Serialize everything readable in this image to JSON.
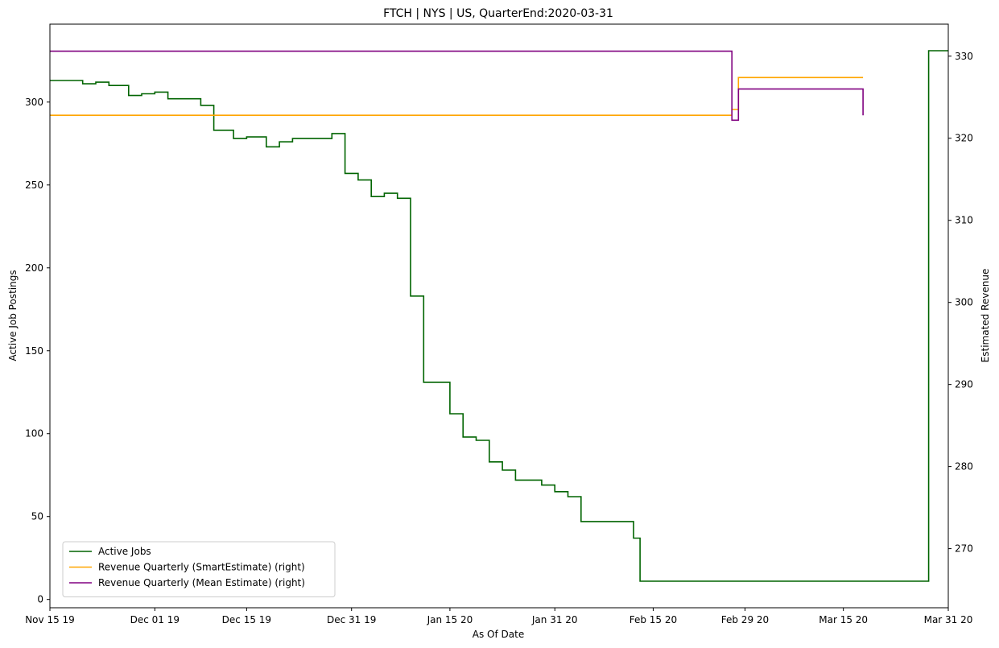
{
  "chart_data": {
    "type": "line",
    "title": "FTCH | NYS | US, QuarterEnd:2020-03-31",
    "xlabel": "As Of Date",
    "ylabel": "Active Job Postings",
    "y2label": "Estimated Revenue",
    "xlim": [
      "2019-11-15",
      "2020-03-31"
    ],
    "ylim": [
      -5,
      347
    ],
    "y2lim": [
      262.8,
      333.9
    ],
    "x_ticks": [
      {
        "date": "2019-11-15",
        "label": "Nov 15 19"
      },
      {
        "date": "2019-12-01",
        "label": "Dec 01 19"
      },
      {
        "date": "2019-12-15",
        "label": "Dec 15 19"
      },
      {
        "date": "2019-12-31",
        "label": "Dec 31 19"
      },
      {
        "date": "2020-01-15",
        "label": "Jan 15 20"
      },
      {
        "date": "2020-01-31",
        "label": "Jan 31 20"
      },
      {
        "date": "2020-02-15",
        "label": "Feb 15 20"
      },
      {
        "date": "2020-02-29",
        "label": "Feb 29 20"
      },
      {
        "date": "2020-03-15",
        "label": "Mar 15 20"
      },
      {
        "date": "2020-03-31",
        "label": "Mar 31 20"
      }
    ],
    "y_ticks": [
      0,
      50,
      100,
      150,
      200,
      250,
      300
    ],
    "y2_ticks": [
      270,
      280,
      290,
      300,
      310,
      320,
      330
    ],
    "grid": false,
    "legend_position": "lower-left",
    "series": [
      {
        "name": "Active Jobs",
        "axis": "left",
        "color": "#006400",
        "step": "post",
        "points": [
          [
            "2019-11-15",
            313
          ],
          [
            "2019-11-20",
            311
          ],
          [
            "2019-11-22",
            312
          ],
          [
            "2019-11-24",
            310
          ],
          [
            "2019-11-27",
            304
          ],
          [
            "2019-11-29",
            305
          ],
          [
            "2019-11-31",
            306
          ],
          [
            "2019-12-03",
            302
          ],
          [
            "2019-12-08",
            298
          ],
          [
            "2019-12-10",
            283
          ],
          [
            "2019-12-13",
            278
          ],
          [
            "2019-12-15",
            279
          ],
          [
            "2019-12-18",
            273
          ],
          [
            "2019-12-20",
            276
          ],
          [
            "2019-12-22",
            278
          ],
          [
            "2019-12-28",
            281
          ],
          [
            "2019-12-30",
            257
          ],
          [
            "2020-01-01",
            253
          ],
          [
            "2020-01-03",
            243
          ],
          [
            "2020-01-05",
            245
          ],
          [
            "2020-01-07",
            242
          ],
          [
            "2020-01-09",
            183
          ],
          [
            "2020-01-11",
            131
          ],
          [
            "2020-01-15",
            112
          ],
          [
            "2020-01-17",
            98
          ],
          [
            "2020-01-19",
            96
          ],
          [
            "2020-01-21",
            83
          ],
          [
            "2020-01-23",
            78
          ],
          [
            "2020-01-25",
            72
          ],
          [
            "2020-01-29",
            69
          ],
          [
            "2020-01-31",
            65
          ],
          [
            "2020-02-02",
            62
          ],
          [
            "2020-02-04",
            47
          ],
          [
            "2020-02-12",
            37
          ],
          [
            "2020-02-13",
            11
          ],
          [
            "2020-03-28",
            331
          ],
          [
            "2020-03-31",
            331
          ]
        ]
      },
      {
        "name": "Revenue Quarterly (SmartEstimate) (right)",
        "axis": "right",
        "color": "#FFA500",
        "step": "post",
        "points": [
          [
            "2019-11-15",
            322.8
          ],
          [
            "2020-02-27",
            323.5
          ],
          [
            "2020-02-28",
            327.4
          ],
          [
            "2020-03-18",
            327.4
          ]
        ]
      },
      {
        "name": "Revenue Quarterly (Mean Estimate) (right)",
        "axis": "right",
        "color": "#800080",
        "step": "post",
        "points": [
          [
            "2019-11-15",
            330.6
          ],
          [
            "2020-02-27",
            322.2
          ],
          [
            "2020-02-28",
            326.0
          ],
          [
            "2020-03-18",
            322.8
          ]
        ]
      }
    ]
  }
}
